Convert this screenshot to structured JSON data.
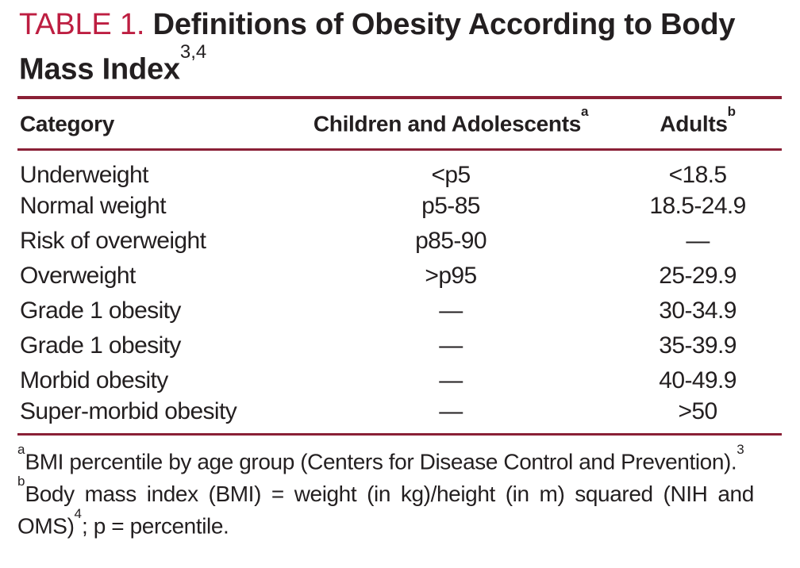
{
  "title": {
    "label": "TABLE 1.",
    "line1": "Definitions of Obesity According to Body",
    "line2": "Mass Index",
    "superscript": "3,4"
  },
  "table": {
    "columns": [
      {
        "label": "Category",
        "superscript": ""
      },
      {
        "label": "Children and Adolescents",
        "superscript": "a"
      },
      {
        "label": "Adults",
        "superscript": "b"
      }
    ],
    "rows": [
      {
        "category": "Underweight",
        "children": "<p5",
        "adults": "<18.5"
      },
      {
        "category": "Normal weight",
        "children": "p5-85",
        "adults": "18.5-24.9"
      },
      {
        "category": "Risk of overweight",
        "children": "p85-90",
        "adults": "—"
      },
      {
        "category": "Overweight",
        "children": ">p95",
        "adults": "25-29.9"
      },
      {
        "category": "Grade 1 obesity",
        "children": "—",
        "adults": "30-34.9"
      },
      {
        "category": "Grade 1 obesity",
        "children": "—",
        "adults": "35-39.9"
      },
      {
        "category": "Morbid obesity",
        "children": "—",
        "adults": "40-49.9"
      },
      {
        "category": "Super-morbid obesity",
        "children": "—",
        "adults": ">50"
      }
    ]
  },
  "footnotes": [
    {
      "marker": "a",
      "text": "BMI percentile by age group (Centers for Disease Control and Prevention).",
      "sup_end": "3"
    },
    {
      "marker": "b",
      "line1": "Body mass index (BMI) = weight (in kg)/height (in m) squared (NIH and",
      "line2_pre": "OMS)",
      "sup": "4",
      "line2_post": "; p = percentile."
    }
  ],
  "colors": {
    "accent_red": "#bd1e41",
    "rule_maroon": "#8a2036",
    "text": "#231f20",
    "background": "#ffffff"
  }
}
